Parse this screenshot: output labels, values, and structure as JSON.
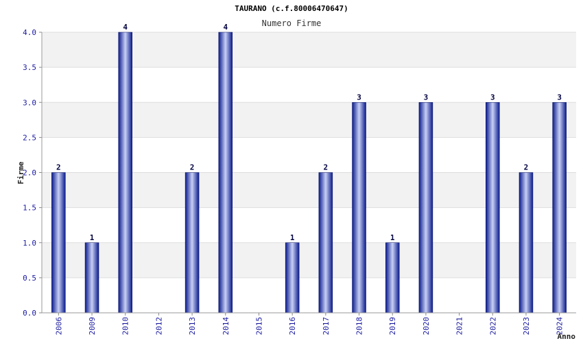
{
  "chart_data": {
    "type": "bar",
    "title": "TAURANO (c.f.80006470647)",
    "subtitle": "Numero Firme",
    "xlabel": "Anno",
    "ylabel": "Firme",
    "ylim": [
      0,
      4.0
    ],
    "yticks": [
      "0.0",
      "0.5",
      "1.0",
      "1.5",
      "2.0",
      "2.5",
      "3.0",
      "3.5",
      "4.0"
    ],
    "categories": [
      "2006",
      "2009",
      "2010",
      "2012",
      "2013",
      "2014",
      "2015",
      "2016",
      "2017",
      "2018",
      "2019",
      "2020",
      "2021",
      "2022",
      "2023",
      "2024"
    ],
    "values": [
      2,
      1,
      4,
      0,
      2,
      4,
      0,
      1,
      2,
      3,
      1,
      3,
      0,
      3,
      2,
      3
    ],
    "grid": true,
    "legend": "none"
  },
  "colors": {
    "bar_dark": "#0a1a8c",
    "bar_light": "#c8d0f5",
    "band_gray": "#f2f2f2",
    "tick_text": "#1a1aa0"
  }
}
